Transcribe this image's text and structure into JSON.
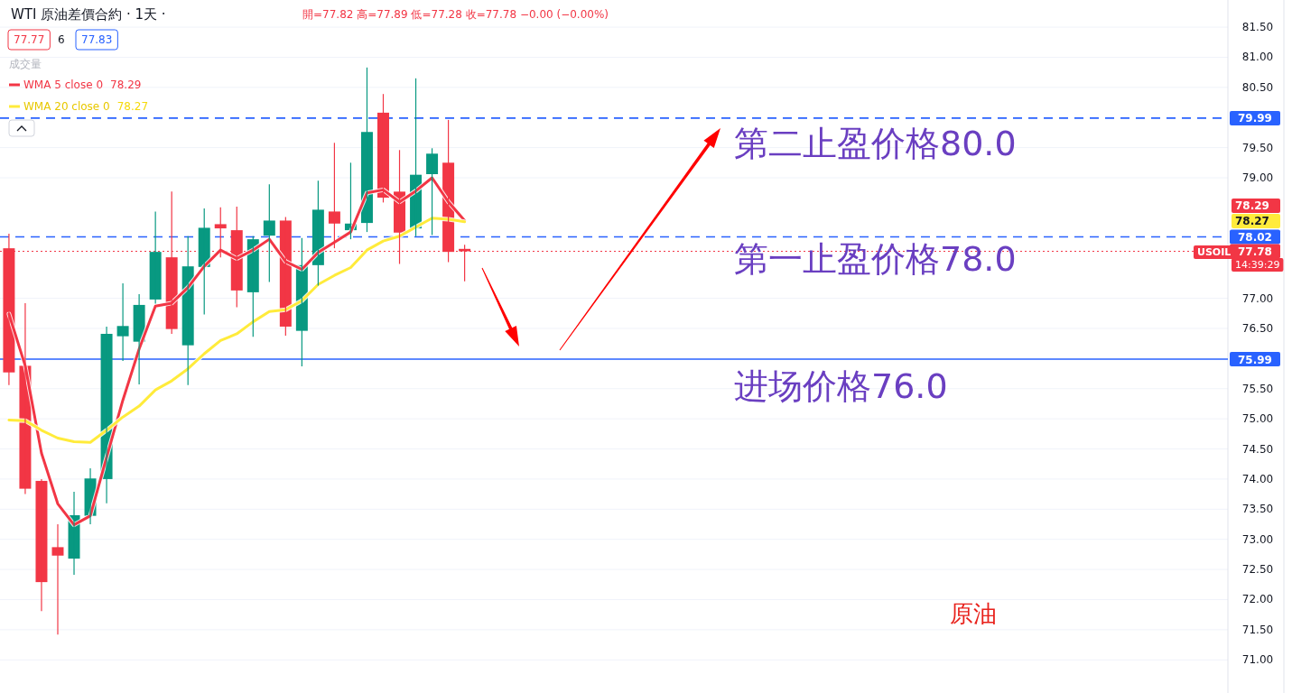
{
  "chart_data": {
    "type": "candlestick",
    "title": "WTI 原油差價合約 · 1天 ·",
    "subtitle": "開=77.82 高=77.89 低=77.28 收=77.78 −0.00 (−0.00%)",
    "categories": [
      null,
      null,
      null,
      null,
      null,
      null,
      null,
      null,
      null,
      null,
      null,
      null,
      null,
      null,
      null,
      null,
      null,
      null,
      null,
      null,
      null,
      null,
      null,
      null,
      null,
      null,
      null,
      null,
      null,
      null,
      null,
      null,
      null,
      null,
      null,
      null,
      null,
      null,
      null,
      null,
      null,
      null,
      null,
      null,
      null,
      null,
      null,
      null,
      null,
      null,
      null,
      null,
      null,
      null,
      null,
      null,
      null,
      null,
      null,
      null,
      null,
      null,
      null,
      null,
      null,
      null,
      null,
      null,
      null,
      null,
      null,
      null,
      null,
      null,
      null
    ],
    "ohlc": [
      [
        77.83,
        78.07,
        75.56,
        75.77
      ],
      [
        75.88,
        76.92,
        73.75,
        73.84
      ],
      [
        73.97,
        74.0,
        71.81,
        72.29
      ],
      [
        72.87,
        73.25,
        71.42,
        72.73
      ],
      [
        72.68,
        73.79,
        72.41,
        73.4
      ],
      [
        73.39,
        74.18,
        73.25,
        74.01
      ],
      [
        74.0,
        76.53,
        73.6,
        76.41
      ],
      [
        76.37,
        77.25,
        75.96,
        76.54
      ],
      [
        76.28,
        77.07,
        75.57,
        76.89
      ],
      [
        76.98,
        78.44,
        76.91,
        77.77
      ],
      [
        77.68,
        78.77,
        76.41,
        76.49
      ],
      [
        76.22,
        78.03,
        75.56,
        77.53
      ],
      [
        77.52,
        78.49,
        76.73,
        78.17
      ],
      [
        78.23,
        78.51,
        77.68,
        78.16
      ],
      [
        78.13,
        78.52,
        76.85,
        77.13
      ],
      [
        77.1,
        78.03,
        76.36,
        77.98
      ],
      [
        78.04,
        78.89,
        77.27,
        78.29
      ],
      [
        78.29,
        78.35,
        76.38,
        76.53
      ],
      [
        76.46,
        78.0,
        75.87,
        77.55
      ],
      [
        77.55,
        78.95,
        77.21,
        78.47
      ],
      [
        78.44,
        79.58,
        77.83,
        78.24
      ],
      [
        78.13,
        79.25,
        77.98,
        78.24
      ],
      [
        78.25,
        80.83,
        78.1,
        79.76
      ],
      [
        80.08,
        80.39,
        78.59,
        78.67
      ],
      [
        78.77,
        79.46,
        77.57,
        78.09
      ],
      [
        78.16,
        80.65,
        78.03,
        79.05
      ],
      [
        79.06,
        79.49,
        78.05,
        79.4
      ],
      [
        79.25,
        79.96,
        77.6,
        77.77
      ],
      [
        77.82,
        77.89,
        77.28,
        77.78
      ],
      null,
      null,
      null,
      null,
      null,
      null,
      null,
      null,
      null,
      null,
      null,
      null,
      null,
      null,
      null,
      null,
      null,
      null,
      null,
      null,
      null,
      null,
      null,
      null,
      null,
      null,
      null,
      null,
      null,
      null,
      null,
      null,
      null,
      null,
      null,
      null,
      null,
      null,
      null,
      null,
      null,
      null,
      null,
      null,
      null,
      null
    ],
    "colors": [
      "#f23645",
      "#f23645",
      "#f23645",
      "#f23645",
      "#089981",
      "#089981",
      "#089981",
      "#089981",
      "#089981",
      "#089981",
      "#f23645",
      "#089981",
      "#089981",
      "#f23645",
      "#f23645",
      "#089981",
      "#089981",
      "#f23645",
      "#089981",
      "#089981",
      "#f23645",
      "#089981",
      "#089981",
      "#f23645",
      "#f23645",
      "#089981",
      "#089981",
      "#f23645",
      "#f23645",
      null,
      null,
      null,
      null,
      null,
      null,
      null,
      null,
      null,
      null,
      null,
      null,
      null,
      null,
      null,
      null,
      null,
      null,
      null,
      null,
      null,
      null,
      null,
      null,
      null,
      null,
      null,
      null,
      null,
      null,
      null,
      null,
      null,
      null,
      null,
      null,
      null,
      null,
      null,
      null,
      null,
      null,
      null,
      null,
      null,
      null
    ],
    "series": [
      {
        "type": "line",
        "name": "WMA 5 close 0",
        "color": "#f23645",
        "values": [
          76.74,
          75.88,
          74.43,
          73.59,
          73.24,
          73.39,
          74.36,
          75.31,
          76.16,
          76.87,
          76.92,
          77.18,
          77.53,
          77.8,
          77.66,
          77.8,
          77.98,
          77.61,
          77.48,
          77.76,
          77.93,
          78.1,
          78.75,
          78.8,
          78.6,
          78.78,
          79.0,
          78.6,
          78.29,
          null,
          null,
          null,
          null,
          null,
          null,
          null,
          null,
          null,
          null,
          null,
          null,
          null,
          null,
          null,
          null,
          null,
          null,
          null,
          null,
          null,
          null,
          null,
          null,
          null,
          null,
          null,
          null,
          null,
          null,
          null,
          null,
          null,
          null,
          null,
          null,
          null,
          null,
          null,
          null,
          null,
          null,
          null,
          null,
          null,
          null
        ]
      },
      {
        "type": "line",
        "name": "WMA 20 close 0",
        "color": "#ffeb3b",
        "values": [
          74.98,
          74.97,
          74.81,
          74.68,
          74.62,
          74.61,
          74.81,
          75.03,
          75.21,
          75.48,
          75.63,
          75.83,
          76.08,
          76.3,
          76.41,
          76.61,
          76.78,
          76.81,
          76.96,
          77.23,
          77.38,
          77.51,
          77.8,
          77.95,
          78.03,
          78.18,
          78.33,
          78.31,
          78.27,
          null,
          null,
          null,
          null,
          null,
          null,
          null,
          null,
          null,
          null,
          null,
          null,
          null,
          null,
          null,
          null,
          null,
          null,
          null,
          null,
          null,
          null,
          null,
          null,
          null,
          null,
          null,
          null,
          null,
          null,
          null,
          null,
          null,
          null,
          null,
          null,
          null,
          null,
          null,
          null,
          null,
          null,
          null,
          null,
          null,
          null
        ]
      }
    ],
    "ylim": [
      70.45,
      81.95
    ],
    "yticks": [
      {
        "value": 71,
        "label": "71.00"
      },
      {
        "value": 71.5,
        "label": "71.50"
      },
      {
        "value": 72,
        "label": "72.00"
      },
      {
        "value": 72.5,
        "label": "72.50"
      },
      {
        "value": 73,
        "label": "73.00"
      },
      {
        "value": 73.5,
        "label": "73.50"
      },
      {
        "value": 74,
        "label": "74.00"
      },
      {
        "value": 74.5,
        "label": "74.50"
      },
      {
        "value": 75,
        "label": "75.00"
      },
      {
        "value": 75.5,
        "label": "75.50"
      },
      {
        "value": 76.5,
        "label": "76.50"
      },
      {
        "value": 77,
        "label": "77.00"
      },
      {
        "value": 79,
        "label": "79.00"
      },
      {
        "value": 79.5,
        "label": "79.50"
      },
      {
        "value": 80.5,
        "label": "80.50"
      },
      {
        "value": 81,
        "label": "81.00"
      },
      {
        "value": 81.5,
        "label": "81.50"
      }
    ],
    "tick_labels": "y",
    "grid": "y",
    "legend": "top left",
    "ref_lines": [
      {
        "axis": "y",
        "value": 79.99,
        "label": "79.99",
        "color": "#2962ff",
        "line_style": "dashed"
      },
      {
        "axis": "y",
        "value": 78.02,
        "label": "78.02",
        "color": "#2962ff",
        "line_style": "dashed"
      },
      {
        "axis": "y",
        "value": 75.99,
        "label": "75.99",
        "color": "#2962ff",
        "line_style": "solid"
      },
      {
        "axis": "y",
        "value": 77.78,
        "label": "77.78",
        "color": "#f23645",
        "line_style": "dotted"
      }
    ],
    "annotations": [
      "第二止盈价格80.0",
      "第一止盈价格78.0",
      "进场价格76.0",
      "原油",
      "77.77",
      "6",
      "77.83",
      "成交量",
      "USOIL",
      "14:39:29",
      "78.29",
      "78.27",
      "78.29",
      "78.27"
    ]
  }
}
